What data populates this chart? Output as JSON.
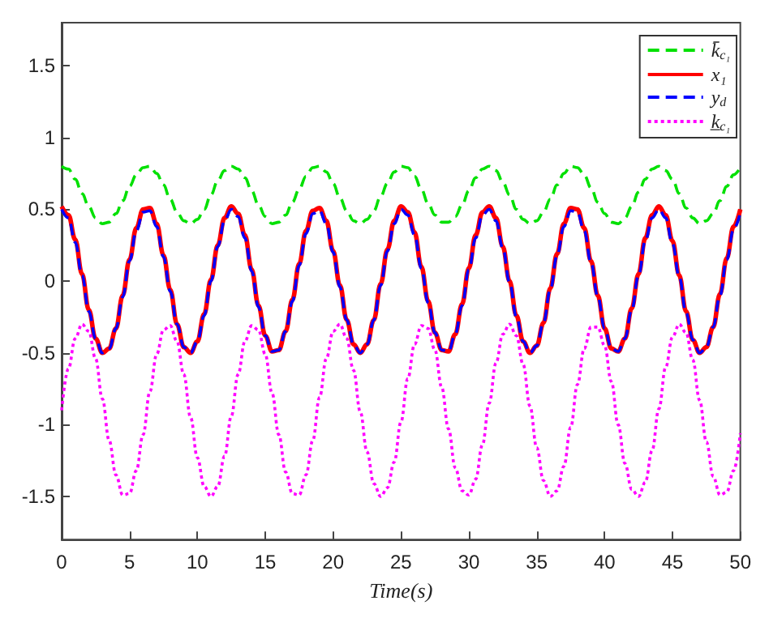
{
  "chart_data": {
    "type": "line",
    "xlabel": "Time(s)",
    "xlim": [
      0,
      50
    ],
    "xticks": [
      0,
      5,
      10,
      15,
      20,
      25,
      30,
      35,
      40,
      45,
      50
    ],
    "ylim": [
      -1.8,
      1.8
    ],
    "yticks": [
      -1.5,
      -1,
      -0.5,
      0,
      0.5,
      1,
      1.5
    ],
    "grid": false,
    "legend": "top right",
    "marker": "none",
    "x": [
      0,
      0.5,
      1,
      1.5,
      2,
      2.5,
      3,
      3.5,
      4,
      4.5,
      5,
      5.5,
      6,
      6.5,
      7,
      7.5,
      8,
      8.5,
      9,
      9.5,
      10,
      10.5,
      11,
      11.5,
      12,
      12.5,
      13,
      13.5,
      14,
      14.5,
      15,
      15.5,
      16,
      16.5,
      17,
      17.5,
      18,
      18.5,
      19,
      19.5,
      20,
      20.5,
      21,
      21.5,
      22,
      22.5,
      23,
      23.5,
      24,
      24.5,
      25,
      25.5,
      26,
      26.5,
      27,
      27.5,
      28,
      28.5,
      29,
      29.5,
      30,
      30.5,
      31,
      31.5,
      32,
      32.5,
      33,
      33.5,
      34,
      34.5,
      35,
      35.5,
      36,
      36.5,
      37,
      37.5,
      38,
      38.5,
      39,
      39.5,
      40,
      40.5,
      41,
      41.5,
      42,
      42.5,
      43,
      43.5,
      44,
      44.5,
      45,
      45.5,
      46,
      46.5,
      47,
      47.5,
      48,
      48.5,
      49,
      49.5,
      50
    ],
    "series": [
      {
        "name": "k̄$_{c₁}$",
        "color": "#00e000",
        "line_style": "dashed",
        "values": [
          0.8,
          0.78,
          0.71,
          0.61,
          0.52,
          0.44,
          0.4,
          0.41,
          0.47,
          0.56,
          0.66,
          0.74,
          0.79,
          0.8,
          0.75,
          0.67,
          0.57,
          0.48,
          0.42,
          0.4,
          0.43,
          0.5,
          0.6,
          0.7,
          0.77,
          0.8,
          0.78,
          0.72,
          0.63,
          0.53,
          0.45,
          0.4,
          0.41,
          0.46,
          0.55,
          0.64,
          0.73,
          0.79,
          0.8,
          0.76,
          0.68,
          0.58,
          0.49,
          0.42,
          0.4,
          0.43,
          0.49,
          0.59,
          0.68,
          0.76,
          0.8,
          0.79,
          0.73,
          0.64,
          0.54,
          0.46,
          0.41,
          0.41,
          0.45,
          0.53,
          0.63,
          0.72,
          0.78,
          0.8,
          0.77,
          0.69,
          0.6,
          0.5,
          0.43,
          0.4,
          0.42,
          0.48,
          0.57,
          0.67,
          0.75,
          0.8,
          0.79,
          0.74,
          0.65,
          0.55,
          0.47,
          0.41,
          0.4,
          0.44,
          0.52,
          0.62,
          0.71,
          0.78,
          0.8,
          0.77,
          0.71,
          0.61,
          0.51,
          0.44,
          0.4,
          0.42,
          0.47,
          0.56,
          0.66,
          0.74,
          0.79
        ]
      },
      {
        "name": "x₁",
        "color": "#ff0000",
        "line_style": "solid",
        "values": [
          0.52,
          0.46,
          0.29,
          0.05,
          -0.2,
          -0.4,
          -0.5,
          -0.47,
          -0.33,
          -0.1,
          0.15,
          0.37,
          0.5,
          0.51,
          0.4,
          0.18,
          -0.06,
          -0.3,
          -0.46,
          -0.5,
          -0.42,
          -0.23,
          0.01,
          0.25,
          0.44,
          0.52,
          0.47,
          0.32,
          0.08,
          -0.17,
          -0.38,
          -0.49,
          -0.48,
          -0.35,
          -0.13,
          0.12,
          0.35,
          0.49,
          0.51,
          0.42,
          0.21,
          -0.03,
          -0.27,
          -0.44,
          -0.5,
          -0.44,
          -0.27,
          -0.02,
          0.22,
          0.42,
          0.52,
          0.48,
          0.34,
          0.1,
          -0.14,
          -0.36,
          -0.48,
          -0.49,
          -0.37,
          -0.16,
          0.09,
          0.32,
          0.48,
          0.52,
          0.44,
          0.24,
          0,
          -0.24,
          -0.42,
          -0.5,
          -0.45,
          -0.29,
          -0.05,
          0.19,
          0.4,
          0.51,
          0.5,
          0.37,
          0.14,
          -0.1,
          -0.33,
          -0.47,
          -0.49,
          -0.4,
          -0.19,
          0.05,
          0.3,
          0.46,
          0.52,
          0.46,
          0.28,
          0.04,
          -0.21,
          -0.41,
          -0.5,
          -0.46,
          -0.32,
          -0.09,
          0.16,
          0.38,
          0.5
        ]
      },
      {
        "name": "y$_{d}$",
        "color": "#0000ff",
        "line_style": "dashed",
        "values": [
          0.5,
          0.44,
          0.27,
          0.04,
          -0.21,
          -0.4,
          -0.5,
          -0.47,
          -0.33,
          -0.11,
          0.14,
          0.35,
          0.48,
          0.49,
          0.38,
          0.17,
          -0.07,
          -0.3,
          -0.46,
          -0.5,
          -0.42,
          -0.24,
          0,
          0.24,
          0.42,
          0.5,
          0.45,
          0.3,
          0.07,
          -0.18,
          -0.38,
          -0.49,
          -0.48,
          -0.35,
          -0.14,
          0.11,
          0.33,
          0.47,
          0.49,
          0.4,
          0.2,
          -0.04,
          -0.27,
          -0.44,
          -0.5,
          -0.44,
          -0.27,
          -0.03,
          0.21,
          0.4,
          0.5,
          0.46,
          0.32,
          0.09,
          -0.15,
          -0.36,
          -0.48,
          -0.49,
          -0.37,
          -0.17,
          0.08,
          0.3,
          0.46,
          0.5,
          0.42,
          0.23,
          -0.01,
          -0.25,
          -0.42,
          -0.5,
          -0.45,
          -0.29,
          -0.06,
          0.18,
          0.38,
          0.49,
          0.48,
          0.35,
          0.13,
          -0.11,
          -0.33,
          -0.47,
          -0.49,
          -0.4,
          -0.2,
          0.04,
          0.28,
          0.44,
          0.5,
          0.44,
          0.26,
          0.03,
          -0.22,
          -0.41,
          -0.5,
          -0.46,
          -0.32,
          -0.1,
          0.15,
          0.36,
          0.48
        ]
      },
      {
        "name": "k̲$_{c₁}$",
        "color": "#ff00ff",
        "line_style": "dotted",
        "values": [
          -0.9,
          -0.61,
          -0.4,
          -0.3,
          -0.35,
          -0.54,
          -0.82,
          -1.11,
          -1.35,
          -1.49,
          -1.48,
          -1.32,
          -1.07,
          -0.77,
          -0.51,
          -0.34,
          -0.31,
          -0.42,
          -0.65,
          -0.95,
          -1.23,
          -1.43,
          -1.5,
          -1.43,
          -1.22,
          -0.94,
          -0.65,
          -0.42,
          -0.31,
          -0.34,
          -0.51,
          -0.78,
          -1.07,
          -1.33,
          -1.48,
          -1.49,
          -1.35,
          -1.11,
          -0.81,
          -0.54,
          -0.35,
          -0.3,
          -0.4,
          -0.62,
          -0.91,
          -1.19,
          -1.41,
          -1.5,
          -1.44,
          -1.26,
          -0.98,
          -0.68,
          -0.44,
          -0.31,
          -0.33,
          -0.48,
          -0.74,
          -1.03,
          -1.3,
          -1.46,
          -1.49,
          -1.38,
          -1.14,
          -0.85,
          -0.57,
          -0.37,
          -0.3,
          -0.38,
          -0.58,
          -0.87,
          -1.16,
          -1.39,
          -1.5,
          -1.46,
          -1.29,
          -1.02,
          -0.72,
          -0.47,
          -0.32,
          -0.32,
          -0.45,
          -0.7,
          -1,
          -1.27,
          -1.45,
          -1.5,
          -1.4,
          -1.18,
          -0.89,
          -0.6,
          -0.39,
          -0.3,
          -0.36,
          -0.55,
          -0.83,
          -1.12,
          -1.36,
          -1.49,
          -1.47,
          -1.32,
          -1.06
        ]
      }
    ]
  }
}
